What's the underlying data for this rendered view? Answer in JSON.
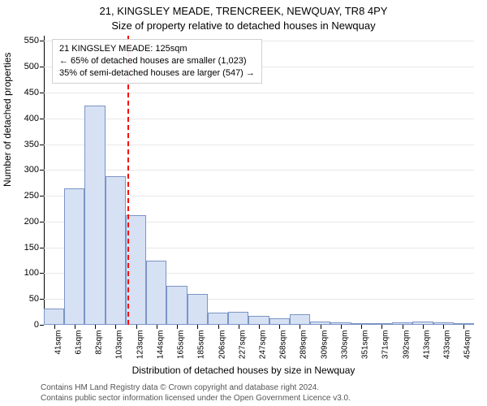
{
  "titles": {
    "line1": "21, KINGSLEY MEADE, TRENCREEK, NEWQUAY, TR8 4PY",
    "line2": "Size of property relative to detached houses in Newquay"
  },
  "axes": {
    "xlabel": "Distribution of detached houses by size in Newquay",
    "ylabel": "Number of detached properties",
    "ylim": [
      0,
      560
    ],
    "yticks": [
      0,
      50,
      100,
      150,
      200,
      250,
      300,
      350,
      400,
      450,
      500,
      550
    ],
    "grid_color": "#e8e8e8",
    "background_color": "#ffffff",
    "x_categories": [
      "41sqm",
      "61sqm",
      "82sqm",
      "103sqm",
      "123sqm",
      "144sqm",
      "165sqm",
      "185sqm",
      "206sqm",
      "227sqm",
      "247sqm",
      "268sqm",
      "289sqm",
      "309sqm",
      "330sqm",
      "351sqm",
      "371sqm",
      "392sqm",
      "413sqm",
      "433sqm",
      "454sqm"
    ]
  },
  "series": {
    "type": "histogram",
    "values": [
      32,
      265,
      425,
      288,
      212,
      125,
      75,
      60,
      24,
      25,
      18,
      12,
      20,
      6,
      4,
      2,
      2,
      4,
      6,
      4,
      1
    ],
    "bar_fill": "#d6e1f4",
    "bar_stroke": "#7b94c5",
    "bar_width_frac": 1.0
  },
  "reference": {
    "value_category_index": 4,
    "color": "#ff0000",
    "dash": "4,3"
  },
  "callout": {
    "line1": "21 KINGSLEY MEADE: 125sqm",
    "line2": "← 65% of detached houses are smaller (1,023)",
    "line3": "35% of semi-detached houses are larger (547) →"
  },
  "footer": {
    "line1": "Contains HM Land Registry data © Crown copyright and database right 2024.",
    "line2": "Contains public sector information licensed under the Open Government Licence v3.0."
  },
  "fonts": {
    "title_size": 13,
    "label_size": 12,
    "tick_size": 11,
    "xtick_size": 10,
    "callout_size": 11,
    "footer_size": 10
  }
}
